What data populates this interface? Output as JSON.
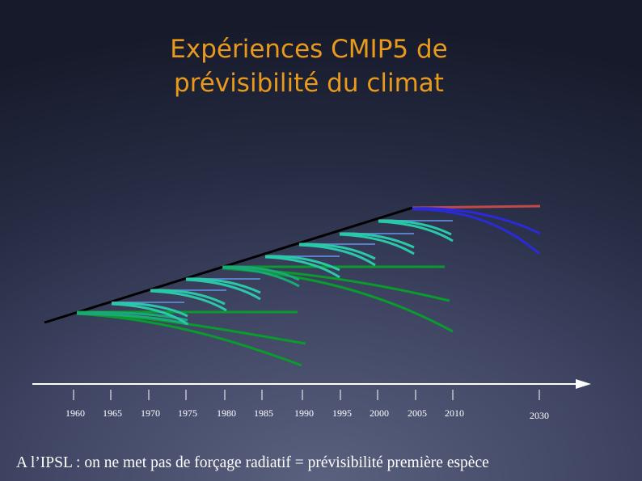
{
  "slide": {
    "title_line1": "Expériences CMIP5 de",
    "title_line2": "prévisibilité du climat",
    "caption": "A l’IPSL : on ne met pas de forçage radiatif = prévisibilité première espèce"
  },
  "timeline": {
    "ticks": [
      "1960",
      "1965",
      "1970",
      "1975",
      "1980",
      "1985",
      "1990",
      "1995",
      "2000",
      "2005",
      "2010",
      "2030"
    ]
  },
  "colors": {
    "title": "#e89a1c",
    "observed_line": "#000000",
    "short_forecast_green": "#1aa878",
    "short_forecast_teal": "#2ac8a8",
    "long_forecast": "#0a9a2e",
    "reference_line": "#5b7fc6",
    "future_blue": "#2a2ad8",
    "future_red": "#c04a4a",
    "axis": "#ffffff"
  }
}
